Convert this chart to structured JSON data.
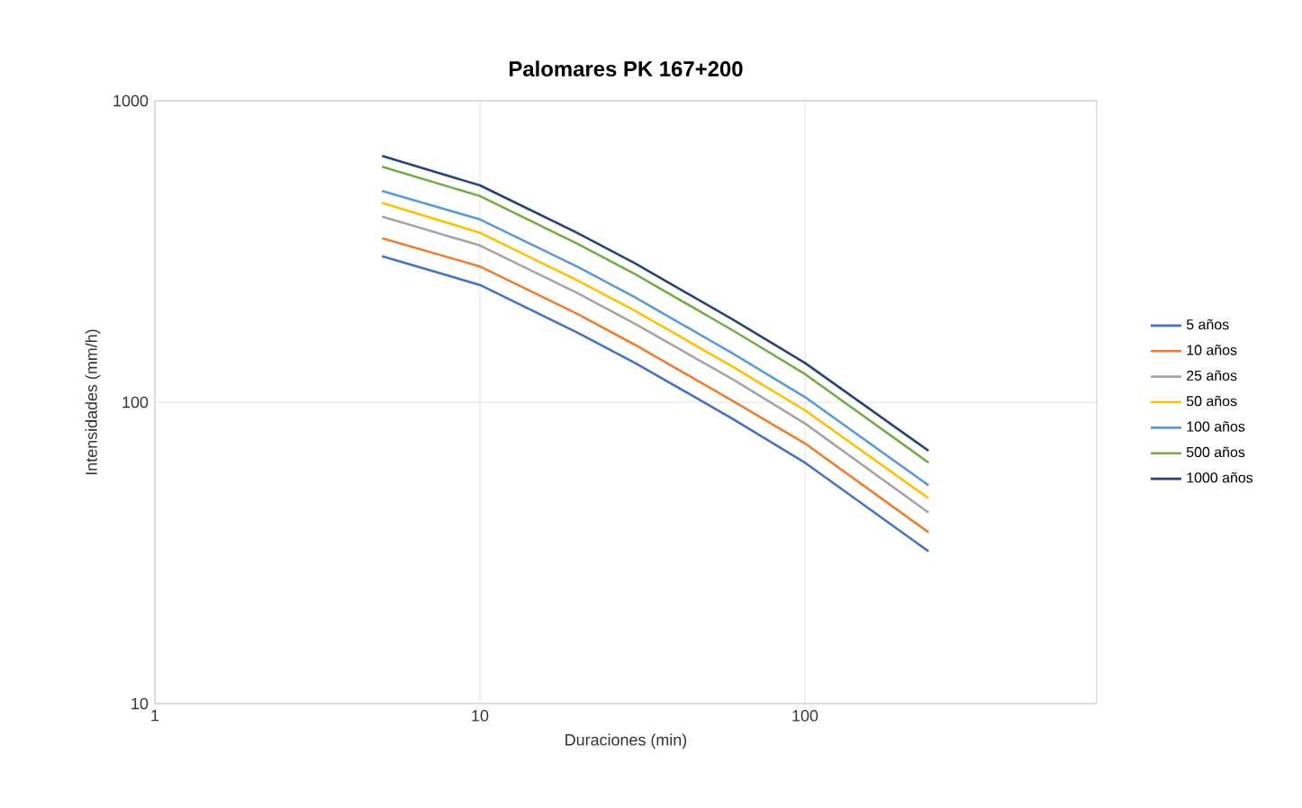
{
  "chart_data": {
    "type": "line",
    "title": "Palomares PK 167+200",
    "xlabel": "Duraciones (min)",
    "ylabel": "Intensidades (mm/h)",
    "log": "xy",
    "grid": true,
    "legend": "right",
    "marker": "none",
    "line_style": "solid",
    "x": [
      5,
      10,
      20,
      30,
      60,
      100,
      240
    ],
    "xlim": [
      1,
      790
    ],
    "ylim": [
      10,
      1000
    ],
    "xticks": [
      1,
      10,
      100
    ],
    "yticks": [
      10,
      100,
      1000
    ],
    "series": [
      {
        "name": "5 años",
        "color": "#4472c4",
        "values": [
          305,
          245,
          170,
          135,
          88,
          63,
          32
        ]
      },
      {
        "name": "10 años",
        "color": "#ed7d31",
        "values": [
          350,
          282,
          196,
          155,
          101,
          73,
          37
        ]
      },
      {
        "name": "25 años",
        "color": "#a5a5a5",
        "values": [
          413,
          331,
          230,
          182,
          119,
          85,
          43
        ]
      },
      {
        "name": "50 años",
        "color": "#ffc000",
        "values": [
          458,
          365,
          253,
          201,
          131,
          94,
          48
        ]
      },
      {
        "name": "100 años",
        "color": "#5b9bd5",
        "values": [
          502,
          404,
          281,
          223,
          145,
          104,
          53
        ]
      },
      {
        "name": "500 años",
        "color": "#70ad47",
        "values": [
          604,
          483,
          335,
          266,
          173,
          124,
          63
        ]
      },
      {
        "name": "1000 años",
        "color": "#264478",
        "values": [
          656,
          524,
          364,
          289,
          188,
          135,
          69
        ]
      }
    ]
  }
}
